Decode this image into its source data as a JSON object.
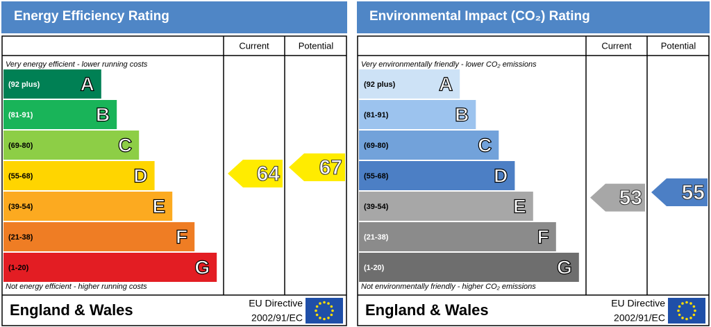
{
  "chart_data": [
    {
      "type": "epc",
      "title": "Energy Efficiency Rating",
      "columns": [
        "Current",
        "Potential"
      ],
      "top_note": "Very energy efficient - lower running costs",
      "bottom_note": "Not energy efficient - higher running costs",
      "bands": [
        {
          "range": "(92 plus)",
          "letter": "A",
          "color": "#008054",
          "text_color": "#ffffff"
        },
        {
          "range": "(81-91)",
          "letter": "B",
          "color": "#19b459",
          "text_color": "#ffffff"
        },
        {
          "range": "(69-80)",
          "letter": "C",
          "color": "#8dce46",
          "text_color": "#000000"
        },
        {
          "range": "(55-68)",
          "letter": "D",
          "color": "#ffd500",
          "text_color": "#000000"
        },
        {
          "range": "(39-54)",
          "letter": "E",
          "color": "#fcaa20",
          "text_color": "#000000"
        },
        {
          "range": "(21-38)",
          "letter": "F",
          "color": "#ef7d24",
          "text_color": "#000000"
        },
        {
          "range": "(1-20)",
          "letter": "G",
          "color": "#e31d23",
          "text_color": "#000000"
        }
      ],
      "current": 64,
      "current_color": "#ffec00",
      "potential": 67,
      "potential_color": "#ffec00",
      "footer": "England & Wales",
      "directive": "EU Directive",
      "directive_code": "2002/91/EC"
    },
    {
      "type": "epc",
      "title": "Environmental Impact (CO₂) Rating",
      "columns": [
        "Current",
        "Potential"
      ],
      "top_note": "Very environmentally friendly - lower CO₂ emissions",
      "bottom_note": "Not environmentally friendly - higher CO₂ emissions",
      "bands": [
        {
          "range": "(92 plus)",
          "letter": "A",
          "color": "#cde2f6",
          "text_color": "#000000"
        },
        {
          "range": "(81-91)",
          "letter": "B",
          "color": "#9cc3ee",
          "text_color": "#000000"
        },
        {
          "range": "(69-80)",
          "letter": "C",
          "color": "#72a2da",
          "text_color": "#000000"
        },
        {
          "range": "(55-68)",
          "letter": "D",
          "color": "#4c7fc5",
          "text_color": "#000000"
        },
        {
          "range": "(39-54)",
          "letter": "E",
          "color": "#a7a7a7",
          "text_color": "#000000"
        },
        {
          "range": "(21-38)",
          "letter": "F",
          "color": "#8b8b8b",
          "text_color": "#ffffff"
        },
        {
          "range": "(1-20)",
          "letter": "G",
          "color": "#6e6e6e",
          "text_color": "#ffffff"
        }
      ],
      "current": 53,
      "current_color": "#a7a7a7",
      "potential": 55,
      "potential_color": "#4c7fc5",
      "footer": "England & Wales",
      "directive": "EU Directive",
      "directive_code": "2002/91/EC"
    }
  ]
}
